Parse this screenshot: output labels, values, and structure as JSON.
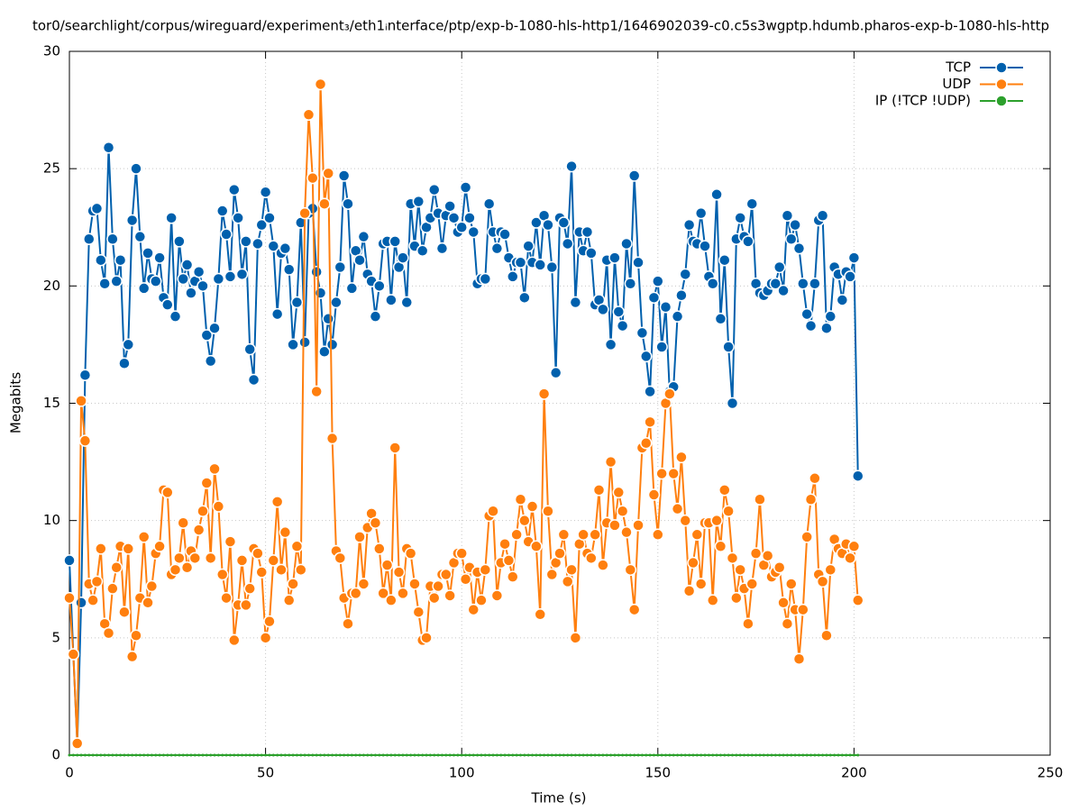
{
  "chart_data": {
    "type": "line",
    "title": "tor0/searchlight/corpus/wireguard/experiment₃/eth1ᵢnterface/ptp/exp-b-1080-hls-http1/1646902039-c0.c5s3wgptp.hdumb.pharos-exp-b-1080-hls-http",
    "xlabel": "Time (s)",
    "ylabel": "Megabits",
    "xlim": [
      0,
      250
    ],
    "xticks": [
      0,
      50,
      100,
      150,
      200,
      250
    ],
    "ylim": [
      0,
      30
    ],
    "yticks": [
      0,
      5,
      10,
      15,
      20,
      25,
      30
    ],
    "grid": true,
    "legend": "top-right",
    "x": [
      0,
      1,
      2,
      3,
      4,
      5,
      6,
      7,
      8,
      9,
      10,
      11,
      12,
      13,
      14,
      15,
      16,
      17,
      18,
      19,
      20,
      21,
      22,
      23,
      24,
      25,
      26,
      27,
      28,
      29,
      30,
      31,
      32,
      33,
      34,
      35,
      36,
      37,
      38,
      39,
      40,
      41,
      42,
      43,
      44,
      45,
      46,
      47,
      48,
      49,
      50,
      51,
      52,
      53,
      54,
      55,
      56,
      57,
      58,
      59,
      60,
      61,
      62,
      63,
      64,
      65,
      66,
      67,
      68,
      69,
      70,
      71,
      72,
      73,
      74,
      75,
      76,
      77,
      78,
      79,
      80,
      81,
      82,
      83,
      84,
      85,
      86,
      87,
      88,
      89,
      90,
      91,
      92,
      93,
      94,
      95,
      96,
      97,
      98,
      99,
      100,
      101,
      102,
      103,
      104,
      105,
      106,
      107,
      108,
      109,
      110,
      111,
      112,
      113,
      114,
      115,
      116,
      117,
      118,
      119,
      120,
      121,
      122,
      123,
      124,
      125,
      126,
      127,
      128,
      129,
      130,
      131,
      132,
      133,
      134,
      135,
      136,
      137,
      138,
      139,
      140,
      141,
      142,
      143,
      144,
      145,
      146,
      147,
      148,
      149,
      150,
      151,
      152,
      153,
      154,
      155,
      156,
      157,
      158,
      159,
      160,
      161,
      162,
      163,
      164,
      165,
      166,
      167,
      168,
      169,
      170,
      171,
      172,
      173,
      174,
      175,
      176,
      177,
      178,
      179,
      180,
      181,
      182,
      183,
      184,
      185,
      186,
      187,
      188,
      189,
      190,
      191,
      192,
      193,
      194,
      195,
      196,
      197,
      198,
      199,
      200,
      201
    ],
    "series": [
      {
        "name": "TCP",
        "color": "#0060ad",
        "values": [
          8.3,
          4.3,
          0.5,
          6.5,
          16.2,
          22,
          23.2,
          23.3,
          21.1,
          20.1,
          25.9,
          22,
          20.2,
          21.1,
          16.7,
          17.5,
          22.8,
          25,
          22.1,
          19.9,
          21.4,
          20.3,
          20.2,
          21.2,
          19.5,
          19.2,
          22.9,
          18.7,
          21.9,
          20.3,
          20.9,
          19.7,
          20.2,
          20.6,
          20,
          17.9,
          16.8,
          18.2,
          20.3,
          23.2,
          22.2,
          20.4,
          24.1,
          22.9,
          20.5,
          21.9,
          17.3,
          16,
          21.8,
          22.6,
          24,
          22.9,
          21.7,
          18.8,
          21.4,
          21.6,
          20.7,
          17.5,
          19.3,
          22.7,
          17.6,
          23.1,
          23.3,
          20.6,
          19.7,
          17.2,
          18.6,
          17.5,
          19.3,
          20.8,
          24.7,
          23.5,
          19.9,
          21.5,
          21.1,
          22.1,
          20.5,
          20.2,
          18.7,
          20,
          21.8,
          21.9,
          19.4,
          21.9,
          20.8,
          21.2,
          19.3,
          23.5,
          21.7,
          23.6,
          21.5,
          22.5,
          22.9,
          24.1,
          23.1,
          21.6,
          23,
          23.4,
          22.9,
          22.3,
          22.5,
          24.2,
          22.9,
          22.3,
          20.1,
          20.3,
          20.3,
          23.5,
          22.3,
          21.6,
          22.3,
          22.2,
          21.2,
          20.4,
          21,
          21,
          19.5,
          21.7,
          21,
          22.7,
          20.9,
          23,
          22.6,
          20.8,
          16.3,
          22.9,
          22.7,
          21.8,
          25.1,
          19.3,
          22.3,
          21.5,
          22.3,
          21.4,
          19.2,
          19.4,
          19,
          21.1,
          17.5,
          21.2,
          18.9,
          18.3,
          21.8,
          20.1,
          24.7,
          21,
          18,
          17,
          15.5,
          19.5,
          20.2,
          17.4,
          19.1,
          15.5,
          15.7,
          18.7,
          19.6,
          20.5,
          22.6,
          21.9,
          21.8,
          23.1,
          21.7,
          20.4,
          20.1,
          23.9,
          18.6,
          21.1,
          17.4,
          15,
          22,
          22.9,
          22.1,
          21.9,
          23.5,
          20.1,
          19.7,
          19.6,
          19.8,
          20.1,
          20.1,
          20.8,
          19.8,
          23,
          22,
          22.6,
          21.6,
          20.1,
          18.8,
          18.3,
          20.1,
          22.8,
          23,
          18.2,
          18.7,
          20.8,
          20.5,
          19.4,
          20.6,
          20.4,
          21.2,
          11.9
        ]
      },
      {
        "name": "UDP",
        "color": "#ff7f0e",
        "values": [
          6.7,
          4.3,
          0.5,
          15.1,
          13.4,
          7.3,
          6.6,
          7.4,
          8.8,
          5.6,
          5.2,
          7.1,
          8,
          8.9,
          6.1,
          8.8,
          4.2,
          5.1,
          6.7,
          9.3,
          6.5,
          7.2,
          8.6,
          8.9,
          11.3,
          11.2,
          7.7,
          7.9,
          8.4,
          9.9,
          8,
          8.7,
          8.4,
          9.6,
          10.4,
          11.6,
          8.4,
          12.2,
          10.6,
          7.7,
          6.7,
          9.1,
          4.9,
          6.4,
          8.3,
          6.4,
          7.1,
          8.8,
          8.6,
          7.8,
          5,
          5.7,
          8.3,
          10.8,
          7.9,
          9.5,
          6.6,
          7.3,
          8.9,
          7.9,
          23.1,
          27.3,
          24.6,
          15.5,
          28.6,
          23.5,
          24.8,
          13.5,
          8.7,
          8.4,
          6.7,
          5.6,
          6.9,
          6.9,
          9.3,
          7.3,
          9.7,
          10.3,
          9.9,
          8.8,
          6.9,
          8.1,
          6.6,
          13.1,
          7.8,
          6.9,
          8.8,
          8.6,
          7.3,
          6.1,
          4.9,
          5,
          7.2,
          6.7,
          7.2,
          7.7,
          7.7,
          6.8,
          8.2,
          8.6,
          8.6,
          7.5,
          8,
          6.2,
          7.8,
          6.6,
          7.9,
          10.2,
          10.4,
          6.8,
          8.2,
          9,
          8.3,
          7.6,
          9.4,
          10.9,
          10,
          9.1,
          10.6,
          8.9,
          6,
          15.4,
          10.4,
          7.7,
          8.2,
          8.6,
          9.4,
          7.4,
          7.9,
          5,
          9,
          9.4,
          8.6,
          8.4,
          9.4,
          11.3,
          8.1,
          9.9,
          12.5,
          9.8,
          11.2,
          10.4,
          9.5,
          7.9,
          6.2,
          9.8,
          13.1,
          13.3,
          14.2,
          11.1,
          9.4,
          12,
          15,
          15.4,
          12,
          10.5,
          12.7,
          10,
          7,
          8.2,
          9.4,
          7.3,
          9.9,
          9.9,
          6.6,
          10,
          8.9,
          11.3,
          10.4,
          8.4,
          6.7,
          7.9,
          7.1,
          5.6,
          7.3,
          8.6,
          10.9,
          8.1,
          8.5,
          7.6,
          7.8,
          8,
          6.5,
          5.6,
          7.3,
          6.2,
          4.1,
          6.2,
          9.3,
          10.9,
          11.8,
          7.7,
          7.4,
          5.1,
          7.9,
          9.2,
          8.8,
          8.6,
          9,
          8.4,
          8.9,
          6.6
        ]
      },
      {
        "name": "IP (!TCP  !UDP)",
        "color": "#2ca02c",
        "values": [
          0,
          0,
          0,
          0,
          0,
          0,
          0,
          0,
          0,
          0,
          0,
          0,
          0,
          0,
          0,
          0,
          0,
          0,
          0,
          0,
          0,
          0,
          0,
          0,
          0,
          0,
          0,
          0,
          0,
          0,
          0,
          0,
          0,
          0,
          0,
          0,
          0,
          0,
          0,
          0,
          0,
          0,
          0,
          0,
          0,
          0,
          0,
          0,
          0,
          0,
          0,
          0,
          0,
          0,
          0,
          0,
          0,
          0,
          0,
          0,
          0,
          0,
          0,
          0,
          0,
          0,
          0,
          0,
          0,
          0,
          0,
          0,
          0,
          0,
          0,
          0,
          0,
          0,
          0,
          0,
          0,
          0,
          0,
          0,
          0,
          0,
          0,
          0,
          0,
          0,
          0,
          0,
          0,
          0,
          0,
          0,
          0,
          0,
          0,
          0,
          0,
          0,
          0,
          0,
          0,
          0,
          0,
          0,
          0,
          0,
          0,
          0,
          0,
          0,
          0,
          0,
          0,
          0,
          0,
          0,
          0,
          0,
          0,
          0,
          0,
          0,
          0,
          0,
          0,
          0,
          0,
          0,
          0,
          0,
          0,
          0,
          0,
          0,
          0,
          0,
          0,
          0,
          0,
          0,
          0,
          0,
          0,
          0,
          0,
          0,
          0,
          0,
          0,
          0,
          0,
          0,
          0,
          0,
          0,
          0,
          0,
          0,
          0,
          0,
          0,
          0,
          0,
          0,
          0,
          0,
          0,
          0,
          0,
          0,
          0,
          0,
          0,
          0,
          0,
          0,
          0,
          0,
          0,
          0,
          0,
          0,
          0,
          0,
          0,
          0,
          0,
          0,
          0,
          0,
          0,
          0,
          0,
          0,
          0,
          0,
          0,
          0
        ]
      }
    ]
  }
}
